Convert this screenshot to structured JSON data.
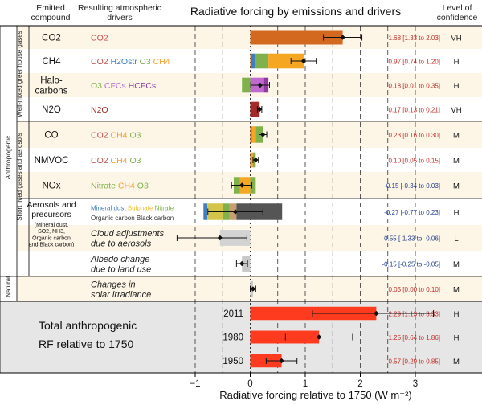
{
  "headers": {
    "emitted_compound": [
      "Emitted",
      "compound"
    ],
    "resulting_drivers": [
      "Resulting atmospheric",
      "drivers"
    ],
    "chart_title": "Radiative forcing by emissions and drivers",
    "confidence": [
      "Level of",
      "confidence"
    ]
  },
  "groups": {
    "anthropogenic": "Anthropogenic",
    "wmghg": "Well-mixed greenhouse gases",
    "short_lived": "Short lived gases and aerosols",
    "natural": "Natural"
  },
  "rows": [
    {
      "compound": [
        "CO2"
      ],
      "drivers": [
        [
          {
            "t": "CO2",
            "c": "#c0504d"
          }
        ]
      ],
      "value_text": "1.68 [1.33 to 2.03]",
      "confidence": "VH"
    },
    {
      "compound": [
        "CH4"
      ],
      "drivers": [
        [
          {
            "t": "CO2",
            "c": "#c0504d"
          },
          {
            "t": " H2Ostr",
            "c": "#3f7fbf"
          },
          {
            "t": " O3",
            "c": "#7fb24c"
          },
          {
            "t": " CH4",
            "c": "#f0a030"
          }
        ]
      ],
      "value_text": "0.97 [0.74 to 1.20]",
      "confidence": "H"
    },
    {
      "compound": [
        "Halo-",
        "carbons"
      ],
      "drivers": [
        [
          {
            "t": "O3",
            "c": "#7fb24c"
          },
          {
            "t": "  CFCs",
            "c": "#c06ad0"
          },
          {
            "t": " HCFCs",
            "c": "#8e3aa0"
          }
        ]
      ],
      "value_text": "0.18 [0.01 to 0.35]",
      "confidence": "H"
    },
    {
      "compound": [
        "N2O"
      ],
      "drivers": [
        [
          {
            "t": "N2O",
            "c": "#a0302c"
          }
        ]
      ],
      "value_text": "0.17 [0.13 to 0.21]",
      "confidence": "VH"
    },
    {
      "compound": [
        "CO"
      ],
      "drivers": [
        [
          {
            "t": "CO2",
            "c": "#c0504d"
          },
          {
            "t": "  CH4",
            "c": "#f0a030"
          },
          {
            "t": "  O3",
            "c": "#7fb24c"
          }
        ]
      ],
      "value_text": "0.23 [0.16 to 0.30]",
      "confidence": "M"
    },
    {
      "compound": [
        "NMVOC"
      ],
      "drivers": [
        [
          {
            "t": "CO2",
            "c": "#c0504d"
          },
          {
            "t": "  CH4",
            "c": "#f0a030"
          },
          {
            "t": "  O3",
            "c": "#7fb24c"
          }
        ]
      ],
      "value_text": "0.10 [0.05 to 0.15]",
      "confidence": "M"
    },
    {
      "compound": [
        "NOx"
      ],
      "drivers": [
        [
          {
            "t": "Nitrate",
            "c": "#7fb24c"
          },
          {
            "t": "  CH4",
            "c": "#f0a030"
          },
          {
            "t": "  O3",
            "c": "#7fb24c"
          }
        ]
      ],
      "value_text": "-0.15 [-0.34 to 0.03]",
      "confidence": "M"
    },
    {
      "compound": [
        "Aerosols and",
        "precursors",
        "(Mineral dust,",
        "SO2, NH3,",
        "Organic carbon",
        "and Black carbon)"
      ],
      "drivers": [
        [
          {
            "t": "Mineral dust",
            "c": "#3f7fbf"
          },
          {
            "t": "   Sulphate",
            "c": "#f0c030"
          },
          {
            "t": "  Nitrate",
            "c": "#7fb24c"
          }
        ],
        [
          {
            "t": "Organic carbon",
            "c": "#333333"
          },
          {
            "t": "   Black carbon",
            "c": "#333333"
          }
        ]
      ],
      "value_text": "-0.27 [-0.77 to 0.23]",
      "confidence": "H"
    },
    {
      "compound": [],
      "drivers": [
        [
          {
            "t": "Cloud adjustments",
            "c": "#222222"
          }
        ],
        [
          {
            "t": "due to aerosols",
            "c": "#222222"
          }
        ]
      ],
      "value_text": "-0.55 [-1.33 to -0.06]",
      "confidence": "L"
    },
    {
      "compound": [],
      "drivers": [
        [
          {
            "t": "Albedo change",
            "c": "#222222"
          }
        ],
        [
          {
            "t": "due to land use",
            "c": "#222222"
          }
        ]
      ],
      "value_text": "-0.15 [-0.25 to -0.05]",
      "confidence": "M"
    },
    {
      "compound": [],
      "drivers": [
        [
          {
            "t": "Changes in",
            "c": "#222222"
          }
        ],
        [
          {
            "t": "solar irradiance",
            "c": "#222222"
          }
        ]
      ],
      "value_text": "0.05 [0.00 to 0.10]",
      "confidence": "M"
    }
  ],
  "total": {
    "label": [
      "Total anthropogenic",
      "RF relative to 1750"
    ],
    "rows": [
      {
        "year": "2011",
        "value_text": "2.29 [1.13 to 3.33]",
        "confidence": "H"
      },
      {
        "year": "1980",
        "value_text": "1.25 [0.64 to 1.86]",
        "confidence": "H"
      },
      {
        "year": "1950",
        "value_text": "0.57 [0.29 to 0.85]",
        "confidence": "M"
      }
    ]
  },
  "colors": {
    "co2": "#d2691e",
    "ch4": "#f5a623",
    "h2o": "#3f7fbf",
    "o3": "#7fb24c",
    "halo": "#c06ad0",
    "hcfc": "#8e3aa0",
    "n2o": "#a52a2a",
    "sulphate": "#d4c44a",
    "black_carbon": "#555555",
    "cloud": "#d3d3d3",
    "total": "#ff3b1f",
    "row_band": "#fdf5e6",
    "total_bg": "#e6e6e6",
    "value_text": "#c0302a",
    "value_text_neg": "#1f3f8f"
  },
  "chart_data": {
    "type": "bar",
    "title": "Radiative forcing by emissions and drivers",
    "xlabel": "Radiative forcing relative to 1750 (W m⁻²)",
    "xlim": [
      -1.1,
      3.45
    ],
    "xticks": [
      -1,
      0,
      1,
      2,
      3
    ],
    "xtick_labels": [
      "−1",
      "0",
      "1",
      "2",
      "3"
    ],
    "grid": "dashed vertical at 0.5 intervals",
    "categories": [
      "CO2",
      "CH4",
      "Halocarbons",
      "N2O",
      "CO",
      "NMVOC",
      "NOx",
      "Aerosols and precursors",
      "Cloud adjustments due to aerosols",
      "Albedo change due to land use",
      "Changes in solar irradiance",
      "Total 2011",
      "Total 1980",
      "Total 1950"
    ],
    "best_estimate": [
      1.68,
      0.97,
      0.18,
      0.17,
      0.23,
      0.1,
      -0.15,
      -0.27,
      -0.55,
      -0.15,
      0.05,
      2.29,
      1.25,
      0.57
    ],
    "uncertainty_low": [
      1.33,
      0.74,
      0.01,
      0.13,
      0.16,
      0.05,
      -0.34,
      -0.77,
      -1.33,
      -0.25,
      0.0,
      1.13,
      0.64,
      0.29
    ],
    "uncertainty_high": [
      2.03,
      1.2,
      0.35,
      0.21,
      0.3,
      0.15,
      0.03,
      0.23,
      -0.06,
      -0.05,
      0.1,
      3.33,
      1.86,
      0.85
    ],
    "components": [
      [
        {
          "name": "CO2",
          "from": 0,
          "to": 1.68,
          "color": "#d2691e"
        }
      ],
      [
        {
          "name": "CO2",
          "from": 0,
          "to": 0.02,
          "color": "#d2691e"
        },
        {
          "name": "H2Ostr",
          "from": 0.02,
          "to": 0.09,
          "color": "#3f7fbf"
        },
        {
          "name": "O3",
          "from": 0.09,
          "to": 0.33,
          "color": "#7fb24c"
        },
        {
          "name": "CH4",
          "from": 0.33,
          "to": 0.97,
          "color": "#f5a623"
        }
      ],
      [
        {
          "name": "O3",
          "from": -0.15,
          "to": 0,
          "color": "#7fb24c"
        },
        {
          "name": "CFCs",
          "from": 0,
          "to": 0.25,
          "color": "#c06ad0"
        },
        {
          "name": "HCFCs",
          "from": 0.25,
          "to": 0.33,
          "color": "#8e3aa0"
        }
      ],
      [
        {
          "name": "N2O",
          "from": 0,
          "to": 0.17,
          "color": "#a52a2a"
        }
      ],
      [
        {
          "name": "CO2",
          "from": 0,
          "to": 0.03,
          "color": "#d2691e"
        },
        {
          "name": "CH4",
          "from": 0.03,
          "to": 0.1,
          "color": "#f5a623"
        },
        {
          "name": "O3",
          "from": 0.1,
          "to": 0.23,
          "color": "#7fb24c"
        }
      ],
      [
        {
          "name": "CO2",
          "from": 0,
          "to": 0.02,
          "color": "#d2691e"
        },
        {
          "name": "CH4",
          "from": 0.02,
          "to": 0.05,
          "color": "#f5a623"
        },
        {
          "name": "O3",
          "from": 0.05,
          "to": 0.1,
          "color": "#7fb24c"
        }
      ],
      [
        {
          "name": "Nitrate",
          "from": -0.3,
          "to": -0.19,
          "color": "#7fb24c"
        },
        {
          "name": "CH4",
          "from": -0.19,
          "to": 0,
          "color": "#f5a623"
        },
        {
          "name": "O3",
          "from": 0,
          "to": 0.1,
          "color": "#7fb24c"
        }
      ],
      [
        {
          "name": "Mineral dust",
          "from": -0.85,
          "to": -0.78,
          "color": "#3f7fbf"
        },
        {
          "name": "Sulphate",
          "from": -0.78,
          "to": -0.5,
          "color": "#d4c44a"
        },
        {
          "name": "Nitrate",
          "from": -0.5,
          "to": -0.38,
          "color": "#7fb24c"
        },
        {
          "name": "Organic carbon",
          "from": -0.38,
          "to": -0.25,
          "color": "#c8a070"
        },
        {
          "name": "Black carbon",
          "from": -0.25,
          "to": 0.58,
          "color": "#555555"
        }
      ],
      [
        {
          "name": "Cloud adjustments",
          "from": -0.55,
          "to": 0,
          "color": "#d3d3d3"
        }
      ],
      [
        {
          "name": "Albedo change",
          "from": -0.15,
          "to": 0,
          "color": "#c8c8c8"
        }
      ],
      [
        {
          "name": "Solar irradiance",
          "from": 0,
          "to": 0.05,
          "color": "#c8c8c8"
        }
      ],
      [
        {
          "name": "2011",
          "from": 0,
          "to": 2.29,
          "color": "#ff3b1f"
        }
      ],
      [
        {
          "name": "1980",
          "from": 0,
          "to": 1.25,
          "color": "#ff3b1f"
        }
      ],
      [
        {
          "name": "1950",
          "from": 0,
          "to": 0.57,
          "color": "#ff3b1f"
        }
      ]
    ]
  }
}
